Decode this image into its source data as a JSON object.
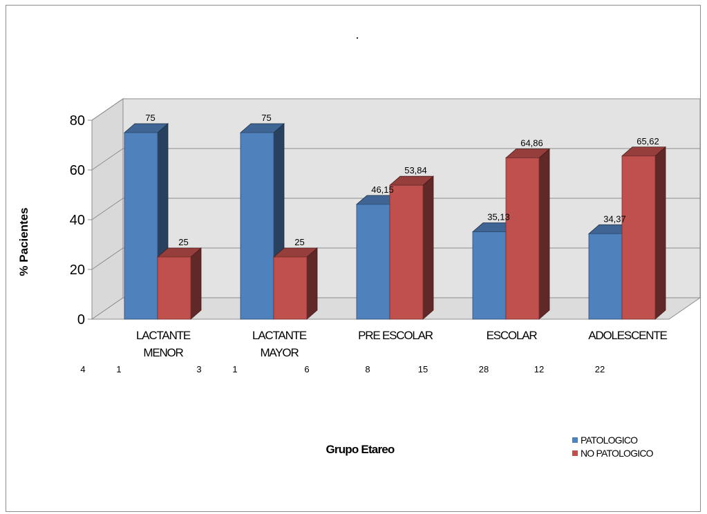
{
  "chart_data": {
    "type": "bar",
    "title": ".",
    "xlabel": "Grupo Etareo",
    "ylabel": "% Pacientes",
    "ylim": [
      0,
      80
    ],
    "yticks": [
      "0",
      "20",
      "40",
      "60",
      "80"
    ],
    "grid": true,
    "legend_position": "bottom-right",
    "categories": [
      [
        "LACTANTE",
        "MENOR"
      ],
      [
        "LACTANTE",
        "MAYOR"
      ],
      [
        "PRE ESCOLAR"
      ],
      [
        "ESCOLAR"
      ],
      [
        "ADOLESCENTE"
      ]
    ],
    "series": [
      {
        "name": "PATOLOGICO",
        "color": "#4f81bd",
        "values": [
          75,
          75,
          46.15,
          35.13,
          34.37
        ],
        "labels": [
          "75",
          "75",
          "46,15",
          "35,13",
          "34,37"
        ]
      },
      {
        "name": "NO PATOLOGICO",
        "color": "#c0504d",
        "values": [
          25,
          25,
          53.84,
          64.86,
          65.62
        ],
        "labels": [
          "25",
          "25",
          "53,84",
          "64,86",
          "65,62"
        ]
      }
    ],
    "counts": [
      [
        "4",
        "1"
      ],
      [
        "3",
        "1"
      ],
      [
        "6",
        "8"
      ],
      [
        "15",
        "28"
      ],
      [
        "12",
        "22"
      ]
    ]
  }
}
